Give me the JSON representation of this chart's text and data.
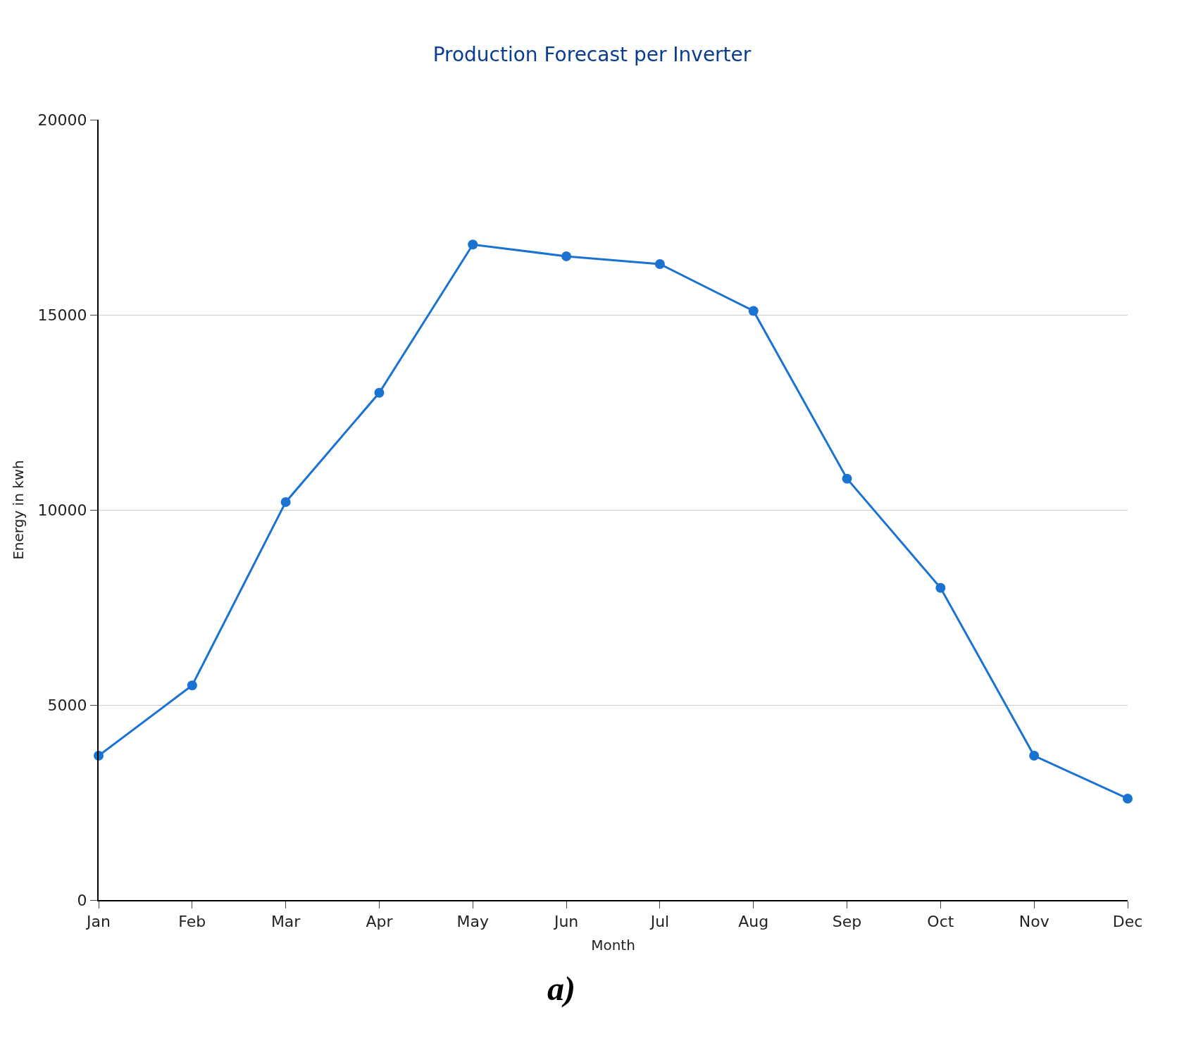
{
  "chart_data": {
    "type": "line",
    "title": "Production Forecast per Inverter",
    "xlabel": "Month",
    "ylabel": "Energy in kwh",
    "categories": [
      "Jan",
      "Feb",
      "Mar",
      "Apr",
      "May",
      "Jun",
      "Jul",
      "Aug",
      "Sep",
      "Oct",
      "Nov",
      "Dec"
    ],
    "series": [
      {
        "color": "#1a73d1",
        "values": [
          3700,
          5500,
          10200,
          13000,
          16800,
          16500,
          16300,
          15100,
          10800,
          8000,
          3700,
          2600
        ]
      }
    ],
    "ylim": [
      0,
      20000
    ],
    "yticks": [
      0,
      5000,
      10000,
      15000,
      20000
    ],
    "grid": "y",
    "legend": false,
    "marker": "circle",
    "line_style": "solid",
    "annotations": [
      "a)"
    ]
  }
}
